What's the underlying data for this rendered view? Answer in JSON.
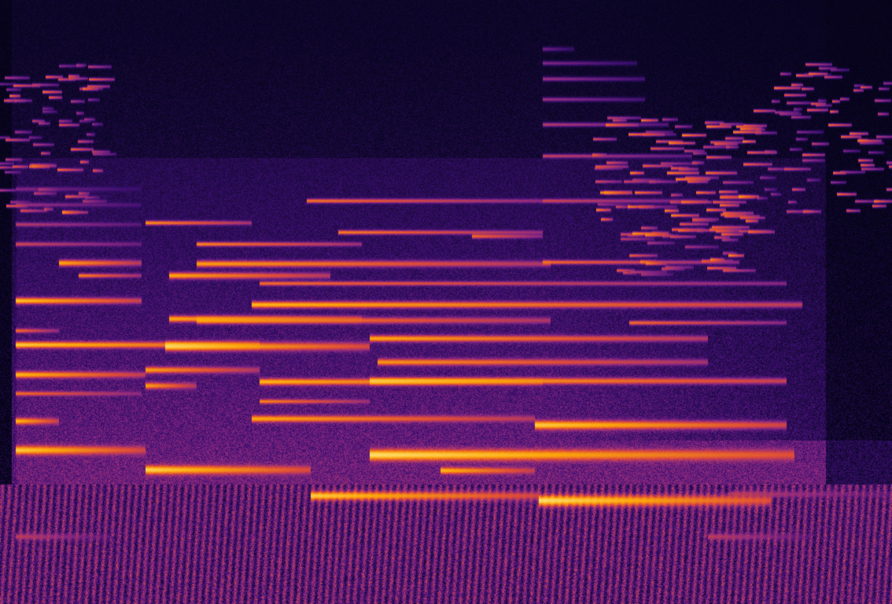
{
  "image": {
    "kind": "spectrogram",
    "colormap": "inferno",
    "colors": {
      "low": "#0b0626",
      "mid_low": "#3b0f6f",
      "mid": "#8c2981",
      "mid_high": "#dd4a3a",
      "high": "#fca50a",
      "peak": "#fcffa4"
    }
  }
}
